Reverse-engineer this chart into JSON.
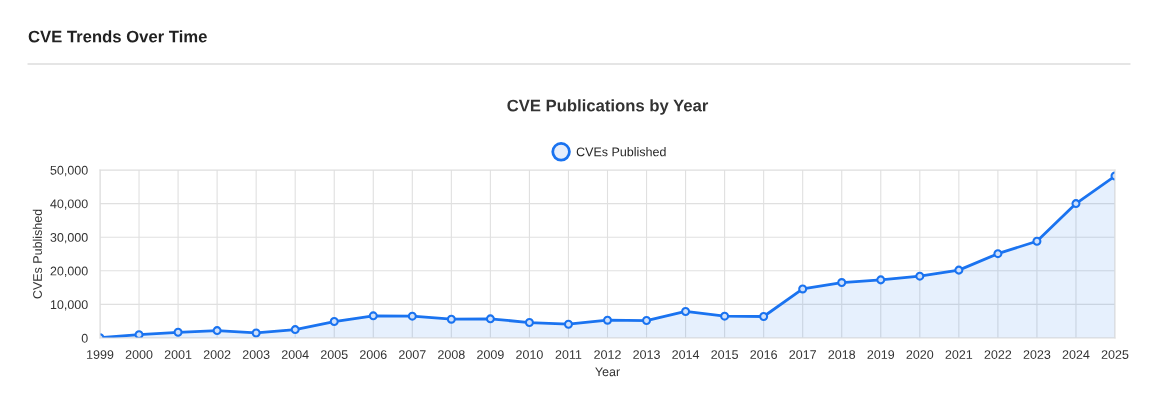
{
  "chart_data": {
    "type": "area",
    "title": "CVE Trends Over Time",
    "subtitle": "CVE Publications by Year",
    "xlabel": "Year",
    "ylabel": "CVEs Published",
    "x": [
      1999,
      2000,
      2001,
      2002,
      2003,
      2004,
      2005,
      2006,
      2007,
      2008,
      2009,
      2010,
      2011,
      2012,
      2013,
      2014,
      2015,
      2016,
      2017,
      2018,
      2019,
      2020,
      2021,
      2022,
      2023,
      2024,
      2025
    ],
    "series": [
      {
        "name": "CVEs Published",
        "color": "#1a73f0",
        "values": [
          100,
          1000,
          1700,
          2200,
          1500,
          2500,
          4900,
          6600,
          6500,
          5600,
          5700,
          4600,
          4100,
          5300,
          5200,
          7900,
          6500,
          6400,
          14600,
          16500,
          17300,
          18400,
          20200,
          25100,
          28800,
          40000,
          48200
        ]
      }
    ],
    "xlim": [
      1999,
      2025
    ],
    "xticks": [
      1999,
      2000,
      2001,
      2002,
      2003,
      2004,
      2005,
      2006,
      2007,
      2008,
      2009,
      2010,
      2011,
      2012,
      2013,
      2014,
      2015,
      2016,
      2017,
      2018,
      2019,
      2020,
      2021,
      2022,
      2023,
      2024,
      2025
    ],
    "ylim": [
      0,
      50000
    ],
    "yticks": [
      {
        "value": 0,
        "label": "0"
      },
      {
        "value": 10000,
        "label": "10,000"
      },
      {
        "value": 20000,
        "label": "20,000"
      },
      {
        "value": 30000,
        "label": "30,000"
      },
      {
        "value": 40000,
        "label": "40,000"
      },
      {
        "value": 50000,
        "label": "50,000"
      }
    ],
    "grid": true,
    "legend": "top",
    "marker": "circle",
    "line_style": "solid"
  }
}
